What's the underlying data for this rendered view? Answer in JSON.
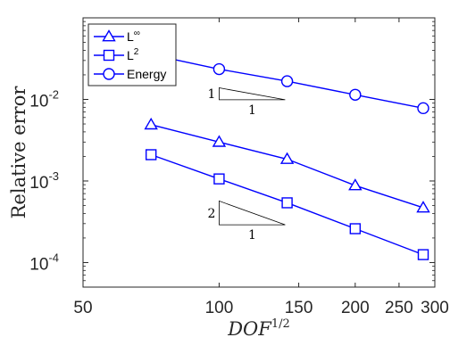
{
  "chart_data": {
    "type": "line",
    "xscale": "log",
    "yscale": "log",
    "xlim": [
      50,
      300
    ],
    "ylim": [
      5e-05,
      0.1
    ],
    "xticks": [
      {
        "value": 50,
        "label": "50"
      },
      {
        "value": 100,
        "label": "100"
      },
      {
        "value": 150,
        "label": "150"
      },
      {
        "value": 200,
        "label": "200"
      },
      {
        "value": 250,
        "label": "250"
      },
      {
        "value": 300,
        "label": "300"
      }
    ],
    "yticks": [
      {
        "value": 0.0001,
        "base": "10",
        "exp": "-4"
      },
      {
        "value": 0.001,
        "base": "10",
        "exp": "-3"
      },
      {
        "value": 0.01,
        "base": "10",
        "exp": "-2"
      }
    ],
    "xlabel": {
      "main": "DOF",
      "sup": "1/2"
    },
    "ylabel": "Relative error",
    "grid": false,
    "legend_position": "top-left",
    "x": [
      70.7,
      100,
      141.4,
      200,
      282.8
    ],
    "series": [
      {
        "name": "L",
        "name_sup": "∞",
        "marker": "triangle",
        "color": "#0000ff",
        "values": [
          0.0049,
          0.003,
          0.00185,
          0.00088,
          0.00047
        ]
      },
      {
        "name": "L",
        "name_sup": "2",
        "marker": "square",
        "color": "#0000ff",
        "values": [
          0.0021,
          0.00106,
          0.00054,
          0.00026,
          0.000125
        ]
      },
      {
        "name": "Energy",
        "name_sup": "",
        "marker": "circle",
        "color": "#0000ff",
        "values": [
          0.0355,
          0.0235,
          0.0167,
          0.0114,
          0.0078
        ]
      }
    ],
    "slope_triangles": [
      {
        "rise_label": "1",
        "run_label": "1"
      },
      {
        "rise_label": "2",
        "run_label": "1"
      }
    ]
  }
}
